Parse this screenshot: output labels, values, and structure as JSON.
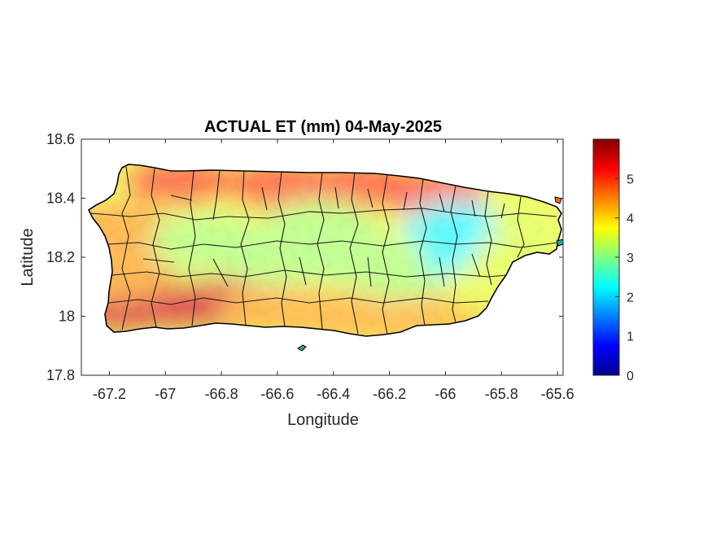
{
  "chart_data": {
    "type": "heatmap",
    "title": "ACTUAL ET (mm) 04-May-2025",
    "xlabel": "Longitude",
    "ylabel": "Latitude",
    "xlim": [
      -67.3,
      -65.58
    ],
    "ylim": [
      17.8,
      18.6
    ],
    "xticks": [
      -67.2,
      -67,
      -66.8,
      -66.6,
      -66.4,
      -66.2,
      -66,
      -65.8,
      -65.6
    ],
    "xtick_labels": [
      "-67.2",
      "-67",
      "-66.8",
      "-66.6",
      "-66.4",
      "-66.2",
      "-66",
      "-65.8",
      "-65.6"
    ],
    "yticks": [
      17.8,
      18,
      18.2,
      18.4,
      18.6
    ],
    "ytick_labels": [
      "17.8",
      "18",
      "18.2",
      "18.4",
      "18.6"
    ],
    "colorbar": {
      "colormap": "jet",
      "range": [
        0,
        6
      ],
      "ticks": [
        0,
        1,
        2,
        3,
        4,
        5
      ],
      "tick_labels": [
        "0",
        "1",
        "2",
        "3",
        "4",
        "5"
      ]
    },
    "grid": false,
    "region": "Puerto Rico municipalities",
    "value_zones": [
      {
        "zone": "north coast",
        "value": 5.0
      },
      {
        "zone": "south-west coast",
        "value": 5.5
      },
      {
        "zone": "west coast",
        "value": 4.4
      },
      {
        "zone": "south coast",
        "value": 4.3
      },
      {
        "zone": "central interior",
        "value": 3.2
      },
      {
        "zone": "north-east interior",
        "value": 2.2
      },
      {
        "zone": "east coast",
        "value": 3.6
      }
    ]
  }
}
